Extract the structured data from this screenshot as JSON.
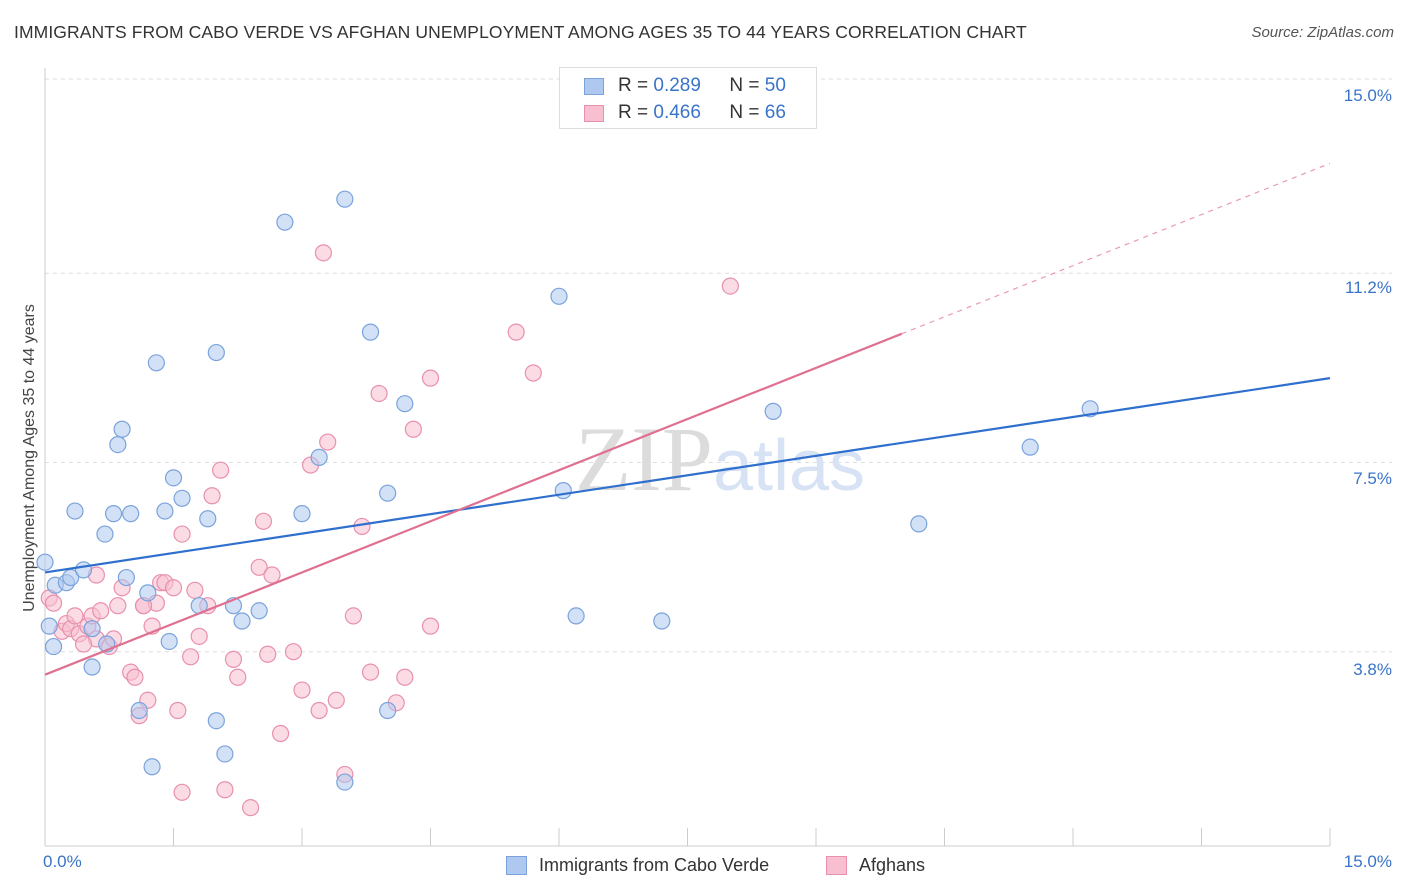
{
  "header": {
    "title": "IMMIGRANTS FROM CABO VERDE VS AFGHAN UNEMPLOYMENT AMONG AGES 35 TO 44 YEARS CORRELATION CHART",
    "source": "Source: ZipAtlas.com"
  },
  "watermark": "ZIPatlas",
  "legend_top": {
    "rows": [
      {
        "r_label": "R =",
        "r_value": "0.289",
        "n_label": "N =",
        "n_value": "50"
      },
      {
        "r_label": "R =",
        "r_value": "0.466",
        "n_label": "N =",
        "n_value": "66"
      }
    ]
  },
  "colors": {
    "blue_fill": "#aec8f0",
    "blue_stroke": "#7aa3dc",
    "blue_line": "#2f6fce",
    "pink_fill": "#f7bfd0",
    "pink_stroke": "#e890ad",
    "pink_line": "#e0708f",
    "tick_text": "#3a74c8",
    "grid": "#dedede"
  },
  "chart_data": {
    "type": "scatter",
    "title": "IMMIGRANTS FROM CABO VERDE VS AFGHAN UNEMPLOYMENT AMONG AGES 35 TO 44 YEARS CORRELATION CHART",
    "xlabel": "",
    "ylabel": "Unemployment Among Ages 35 to 44 years",
    "xlim": [
      0,
      15
    ],
    "ylim": [
      0,
      15
    ],
    "x_tick_labels": [
      "0.0%",
      "15.0%"
    ],
    "y_tick_labels": [
      "15.0%",
      "11.2%",
      "7.5%",
      "3.8%"
    ],
    "y_ticks": [
      15.0,
      11.2,
      7.5,
      3.8
    ],
    "grid": true,
    "legend_position": "bottom",
    "series": [
      {
        "name": "Immigrants from Cabo Verde",
        "color": "#aec8f0",
        "r": 0.289,
        "n": 50,
        "trend": {
          "x0": 0.0,
          "y0": 5.35,
          "x1": 15.0,
          "y1": 9.15,
          "dashed_from": null
        },
        "points": [
          [
            0.0,
            5.55
          ],
          [
            0.05,
            4.3
          ],
          [
            0.12,
            5.1
          ],
          [
            0.25,
            5.15
          ],
          [
            0.3,
            5.25
          ],
          [
            0.35,
            6.55
          ],
          [
            0.45,
            5.4
          ],
          [
            0.55,
            4.25
          ],
          [
            0.55,
            3.5
          ],
          [
            0.7,
            6.1
          ],
          [
            0.72,
            3.95
          ],
          [
            0.8,
            6.5
          ],
          [
            0.85,
            7.85
          ],
          [
            0.9,
            8.15
          ],
          [
            0.95,
            5.25
          ],
          [
            1.0,
            6.5
          ],
          [
            1.1,
            2.65
          ],
          [
            1.2,
            4.95
          ],
          [
            1.25,
            1.55
          ],
          [
            1.3,
            9.45
          ],
          [
            1.4,
            6.55
          ],
          [
            1.45,
            4.0
          ],
          [
            1.5,
            7.2
          ],
          [
            1.6,
            6.8
          ],
          [
            1.8,
            4.7
          ],
          [
            1.9,
            6.4
          ],
          [
            2.0,
            9.65
          ],
          [
            2.0,
            2.45
          ],
          [
            2.1,
            1.8
          ],
          [
            2.2,
            4.7
          ],
          [
            2.3,
            4.4
          ],
          [
            2.5,
            4.6
          ],
          [
            2.8,
            12.2
          ],
          [
            3.0,
            6.5
          ],
          [
            3.2,
            7.6
          ],
          [
            3.5,
            1.25
          ],
          [
            3.5,
            12.65
          ],
          [
            3.8,
            10.05
          ],
          [
            4.0,
            6.9
          ],
          [
            4.0,
            2.65
          ],
          [
            4.2,
            8.65
          ],
          [
            6.0,
            10.75
          ],
          [
            6.05,
            6.95
          ],
          [
            6.2,
            4.5
          ],
          [
            7.2,
            4.4
          ],
          [
            8.5,
            8.5
          ],
          [
            10.2,
            6.3
          ],
          [
            11.5,
            7.8
          ],
          [
            12.2,
            8.55
          ],
          [
            0.1,
            3.9
          ]
        ]
      },
      {
        "name": "Afghans",
        "color": "#f7bfd0",
        "r": 0.466,
        "n": 66,
        "trend": {
          "x0": 0.0,
          "y0": 3.35,
          "x1": 15.0,
          "y1": 13.35,
          "dashed_from": 10.0
        },
        "points": [
          [
            0.05,
            4.85
          ],
          [
            0.1,
            4.75
          ],
          [
            0.2,
            4.2
          ],
          [
            0.25,
            4.35
          ],
          [
            0.3,
            4.25
          ],
          [
            0.35,
            4.5
          ],
          [
            0.4,
            4.15
          ],
          [
            0.5,
            4.3
          ],
          [
            0.55,
            4.5
          ],
          [
            0.6,
            4.05
          ],
          [
            0.65,
            4.6
          ],
          [
            0.75,
            3.9
          ],
          [
            0.8,
            4.05
          ],
          [
            0.85,
            4.7
          ],
          [
            0.9,
            5.05
          ],
          [
            1.0,
            3.4
          ],
          [
            1.05,
            3.3
          ],
          [
            1.1,
            2.55
          ],
          [
            1.15,
            4.7
          ],
          [
            1.2,
            2.85
          ],
          [
            1.25,
            4.3
          ],
          [
            1.3,
            4.75
          ],
          [
            1.35,
            5.15
          ],
          [
            1.4,
            5.15
          ],
          [
            1.5,
            5.05
          ],
          [
            1.55,
            2.65
          ],
          [
            1.6,
            1.05
          ],
          [
            1.6,
            6.1
          ],
          [
            1.7,
            3.7
          ],
          [
            1.75,
            5.0
          ],
          [
            1.8,
            4.1
          ],
          [
            1.9,
            4.7
          ],
          [
            1.95,
            6.85
          ],
          [
            2.05,
            7.35
          ],
          [
            2.1,
            1.1
          ],
          [
            2.2,
            3.65
          ],
          [
            2.25,
            3.3
          ],
          [
            2.4,
            0.75
          ],
          [
            2.5,
            5.45
          ],
          [
            2.55,
            6.35
          ],
          [
            2.6,
            3.75
          ],
          [
            2.65,
            5.3
          ],
          [
            2.75,
            2.2
          ],
          [
            2.9,
            3.8
          ],
          [
            3.0,
            3.05
          ],
          [
            3.1,
            7.45
          ],
          [
            3.2,
            2.65
          ],
          [
            3.25,
            11.6
          ],
          [
            3.3,
            7.9
          ],
          [
            3.4,
            2.85
          ],
          [
            3.5,
            1.4
          ],
          [
            3.6,
            4.5
          ],
          [
            3.7,
            6.25
          ],
          [
            3.8,
            3.4
          ],
          [
            3.9,
            8.85
          ],
          [
            4.1,
            2.8
          ],
          [
            4.2,
            3.3
          ],
          [
            4.3,
            8.15
          ],
          [
            4.5,
            9.15
          ],
          [
            4.5,
            4.3
          ],
          [
            5.5,
            10.05
          ],
          [
            5.7,
            9.25
          ],
          [
            8.0,
            10.95
          ],
          [
            0.45,
            3.95
          ],
          [
            0.6,
            5.3
          ],
          [
            1.15,
            4.7
          ]
        ]
      }
    ]
  },
  "legend_bottom": {
    "items": [
      {
        "label": "Immigrants from Cabo Verde"
      },
      {
        "label": "Afghans"
      }
    ]
  }
}
